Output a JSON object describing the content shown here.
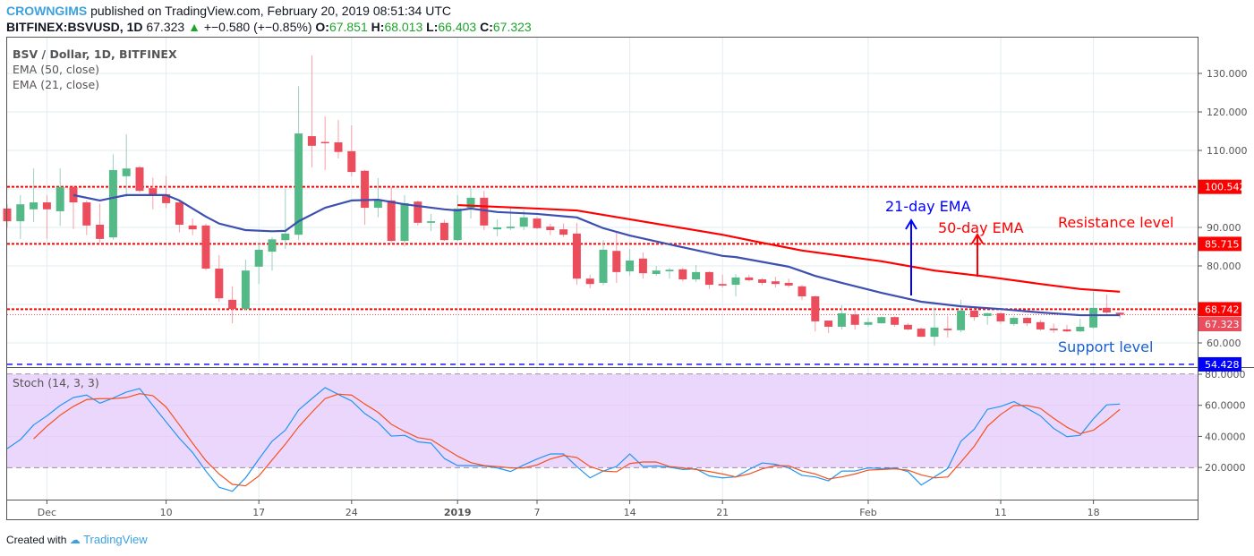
{
  "header": {
    "author": "CROWNGIMS",
    "published": "published on TradingView.com, February 20, 2019 08:51:34 UTC",
    "symbol": "BITFINEX:BSVUSD, 1D",
    "last": "67.323",
    "change": "+−0.580 (+−0.85%)",
    "o_label": "O:",
    "o": "67.851",
    "h_label": "H:",
    "h": "68.013",
    "l_label": "L:",
    "l": "66.403",
    "c_label": "C:",
    "c": "67.323"
  },
  "legend": {
    "title": "BSV / Dollar, 1D, BITFINEX",
    "ema50": "EMA (50, close)",
    "ema21": "EMA (21, close)",
    "stoch": "Stoch (14, 3, 3)"
  },
  "footer": {
    "created": "Created with",
    "brand": "TradingView"
  },
  "colors": {
    "up": "#53b987",
    "down": "#eb4d5c",
    "ema21": "#3d4fb0",
    "ema50": "#ff0000",
    "stoch_k": "#2196f3",
    "stoch_d": "#f4511e",
    "stoch_band": "#e9d0fb",
    "support": "#0000ff",
    "resistance": "#ff0000"
  },
  "chart_data": [
    {
      "type": "candlestick",
      "price_axis": {
        "range": [
          52,
          137
        ],
        "ticks": [
          "130.000",
          "120.000",
          "110.000",
          "90.000",
          "80.000",
          "60.000"
        ],
        "tick_values": [
          130,
          120,
          110,
          90,
          80,
          60
        ]
      },
      "time_axis": {
        "labels": [
          "Dec",
          "10",
          "17",
          "24",
          "2019",
          "7",
          "14",
          "21",
          "Feb",
          "11",
          "18"
        ],
        "label_dates": [
          "Dec 1",
          "Dec 10",
          "Dec 17",
          "Dec 24",
          "Jan 1",
          "Jan 7",
          "Jan 14",
          "Jan 21",
          "Feb 1",
          "Feb 11",
          "Feb 18"
        ]
      },
      "levels": [
        {
          "value": 100.542,
          "label": "100.542",
          "color": "#ff0000",
          "style": "dotted"
        },
        {
          "value": 85.715,
          "label": "85.715",
          "color": "#ff0000",
          "style": "dotted"
        },
        {
          "value": 68.742,
          "label": "68.742",
          "color": "#ff0000",
          "style": "dotted"
        },
        {
          "value": 67.323,
          "label": "67.323",
          "color": "#eb4d5c",
          "style": "price"
        },
        {
          "value": 54.428,
          "label": "54.428",
          "color": "#0000ff",
          "style": "dashed"
        }
      ],
      "annotations": {
        "ema21": "21-day EMA",
        "ema50": "50-day EMA",
        "resistance": "Resistance level",
        "support": "Support level"
      },
      "candles_ohlc_fields": [
        "date",
        "open",
        "high",
        "low",
        "close"
      ],
      "candles": [
        [
          "Nov 28",
          94.9,
          96,
          90,
          91.6
        ],
        [
          "Nov 29",
          91.6,
          98.4,
          87,
          96
        ],
        [
          "Nov 30",
          94.7,
          105.3,
          91.4,
          96.5
        ],
        [
          "Dec 1",
          96.5,
          98.4,
          87,
          94.7
        ],
        [
          "Dec 2",
          94.2,
          105.3,
          90.4,
          100.5
        ],
        [
          "Dec 3",
          100.5,
          101,
          89.6,
          96.5
        ],
        [
          "Dec 4",
          96.5,
          97,
          88,
          90.5
        ],
        [
          "Dec 5",
          90.7,
          96.2,
          86,
          87
        ],
        [
          "Dec 6",
          87.4,
          109,
          86.8,
          104.9
        ],
        [
          "Dec 7",
          103.3,
          114.2,
          97.9,
          105.3
        ],
        [
          "Dec 8",
          105.6,
          106,
          99,
          99.5
        ],
        [
          "Dec 9",
          100.2,
          102.9,
          94.7,
          98.4
        ],
        [
          "Dec 10",
          98.6,
          103.3,
          95,
          96.3
        ],
        [
          "Dec 11",
          96.5,
          97,
          88.7,
          90.7
        ],
        [
          "Dec 12",
          90.5,
          92.3,
          88,
          89.5
        ],
        [
          "Dec 13",
          90.5,
          91,
          78.8,
          79.3
        ],
        [
          "Dec 14",
          79.3,
          82.8,
          70.7,
          71.6
        ],
        [
          "Dec 15",
          71.2,
          74.7,
          65.1,
          68.8
        ],
        [
          "Dec 16",
          68.8,
          81.6,
          68.5,
          78.8
        ],
        [
          "Dec 17",
          79.8,
          86,
          75.3,
          84.2
        ],
        [
          "Dec 18",
          83.7,
          87.5,
          78.8,
          86.9
        ],
        [
          "Dec 19",
          86.7,
          100,
          84.4,
          88.4
        ],
        [
          "Dec 20",
          88.1,
          126.7,
          86.7,
          114.4
        ],
        [
          "Dec 21",
          113.7,
          134.7,
          105.6,
          111.2
        ],
        [
          "Dec 22",
          112.2,
          118.8,
          104.9,
          112
        ],
        [
          "Dec 23",
          112.1,
          117.9,
          107.9,
          109.6
        ],
        [
          "Dec 24",
          109.8,
          116.5,
          103.3,
          104.4
        ],
        [
          "Dec 25",
          104.7,
          105,
          90.7,
          95.1
        ],
        [
          "Dec 26",
          95.1,
          102.8,
          92.6,
          97.2
        ],
        [
          "Dec 27",
          97,
          100.5,
          86,
          86.5
        ],
        [
          "Dec 28",
          86.5,
          98.4,
          85,
          96.3
        ],
        [
          "Dec 29",
          96.7,
          97,
          90.5,
          91.2
        ],
        [
          "Dec 30",
          91.2,
          93.5,
          89,
          91.6
        ],
        [
          "Dec 31",
          91.2,
          92,
          86.5,
          86.7
        ],
        [
          "Jan 1",
          86.7,
          98.4,
          86.5,
          94.9
        ],
        [
          "Jan 2",
          95.1,
          100.2,
          92.3,
          97.7
        ],
        [
          "Jan 3",
          97.7,
          99.5,
          89.3,
          90.5
        ],
        [
          "Jan 4",
          89.5,
          92.1,
          87.7,
          90
        ],
        [
          "Jan 5",
          89.8,
          95,
          89.3,
          90.2
        ],
        [
          "Jan 6",
          90.2,
          94.4,
          89.3,
          92.6
        ],
        [
          "Jan 7",
          92.3,
          92.8,
          89.5,
          89.8
        ],
        [
          "Jan 8",
          90.2,
          91,
          88,
          89.3
        ],
        [
          "Jan 9",
          89.5,
          91,
          87.5,
          88.1
        ],
        [
          "Jan 10",
          88.4,
          91.2,
          75.1,
          76.7
        ],
        [
          "Jan 11",
          76.7,
          77.7,
          74.2,
          75.3
        ],
        [
          "Jan 12",
          75.6,
          86.7,
          75,
          84.2
        ],
        [
          "Jan 13",
          83.9,
          88.8,
          75.6,
          78.4
        ],
        [
          "Jan 14",
          78.6,
          84.4,
          77.4,
          81.4
        ],
        [
          "Jan 15",
          81.9,
          83.5,
          76.7,
          78.1
        ],
        [
          "Jan 16",
          77.9,
          80,
          77.4,
          78.8
        ],
        [
          "Jan 17",
          78.6,
          79.5,
          76.7,
          79
        ],
        [
          "Jan 18",
          79.1,
          79.5,
          76,
          76.5
        ],
        [
          "Jan 19",
          76.5,
          80.2,
          75.8,
          78.4
        ],
        [
          "Jan 20",
          78.4,
          78.6,
          74,
          75.1
        ],
        [
          "Jan 21",
          75.3,
          77.7,
          74.4,
          74.9
        ],
        [
          "Jan 22",
          75.1,
          77.9,
          72.1,
          77
        ],
        [
          "Jan 23",
          77,
          77.7,
          76,
          76.3
        ],
        [
          "Jan 24",
          76.5,
          76.8,
          75,
          75.6
        ],
        [
          "Jan 25",
          76,
          77.2,
          74.4,
          75.3
        ],
        [
          "Jan 26",
          75.6,
          76.7,
          74.4,
          74.9
        ],
        [
          "Jan 27",
          74.7,
          75.1,
          71.2,
          72.1
        ],
        [
          "Jan 28",
          72.1,
          72.3,
          63,
          65.6
        ],
        [
          "Jan 29",
          65.8,
          65.8,
          62.6,
          64.2
        ],
        [
          "Jan 30",
          64.2,
          69.8,
          63.5,
          67.7
        ],
        [
          "Jan 31",
          67.4,
          68.8,
          63.5,
          64.7
        ],
        [
          "Feb 1",
          64.7,
          66.5,
          64.2,
          65.4
        ],
        [
          "Feb 2",
          65.1,
          66.9,
          65,
          66.7
        ],
        [
          "Feb 3",
          66.7,
          66.9,
          64.2,
          64.7
        ],
        [
          "Feb 4",
          64.7,
          65.1,
          63.3,
          63.5
        ],
        [
          "Feb 5",
          63.7,
          64,
          61.5,
          61.6
        ],
        [
          "Feb 6",
          61.6,
          69.3,
          59.3,
          64
        ],
        [
          "Feb 7",
          63.7,
          67,
          61.4,
          63.3
        ],
        [
          "Feb 8",
          63.3,
          71.2,
          62.8,
          68.4
        ],
        [
          "Feb 9",
          68.4,
          68.8,
          65.8,
          66.7
        ],
        [
          "Feb 10",
          67,
          67.9,
          64.7,
          67.7
        ],
        [
          "Feb 11",
          67.7,
          68,
          65,
          65.6
        ],
        [
          "Feb 12",
          64.9,
          67,
          64.4,
          66.5
        ],
        [
          "Feb 13",
          66.5,
          66.8,
          64.4,
          65.1
        ],
        [
          "Feb 14",
          65.4,
          66,
          63.2,
          63.5
        ],
        [
          "Feb 15",
          63.7,
          65,
          62.6,
          63.3
        ],
        [
          "Feb 16",
          63.5,
          64.7,
          62.8,
          63
        ],
        [
          "Feb 17",
          63,
          66.3,
          62.8,
          64.2
        ],
        [
          "Feb 18",
          64,
          73.3,
          63.7,
          69.1
        ],
        [
          "Feb 19",
          69.1,
          72.6,
          67.5,
          67.9
        ],
        [
          "Feb 20",
          67.851,
          68.013,
          66.403,
          67.323
        ]
      ],
      "ema21": [
        [
          "Dec 3",
          98.4
        ],
        [
          "Dec 5",
          97
        ],
        [
          "Dec 7",
          98.4
        ],
        [
          "Dec 10",
          98.4
        ],
        [
          "Dec 11",
          97
        ],
        [
          "Dec 13",
          92.8
        ],
        [
          "Dec 14",
          91
        ],
        [
          "Dec 16",
          89.3
        ],
        [
          "Dec 18",
          89
        ],
        [
          "Dec 19",
          89.1
        ],
        [
          "Dec 20",
          91.6
        ],
        [
          "Dec 22",
          95.1
        ],
        [
          "Dec 24",
          97
        ],
        [
          "Dec 26",
          97.2
        ],
        [
          "Dec 28",
          96
        ],
        [
          "Dec 31",
          94.7
        ],
        [
          "Jan 1",
          94.4
        ],
        [
          "Jan 2",
          94.9
        ],
        [
          "Jan 4",
          94
        ],
        [
          "Jan 7",
          93.5
        ],
        [
          "Jan 10",
          92.6
        ],
        [
          "Jan 12",
          89.8
        ],
        [
          "Jan 14",
          87.9
        ],
        [
          "Jan 17",
          85.6
        ],
        [
          "Jan 21",
          82.6
        ],
        [
          "Jan 22",
          82.3
        ],
        [
          "Jan 26",
          79.8
        ],
        [
          "Jan 28",
          77.4
        ],
        [
          "Jan 30",
          75.6
        ],
        [
          "Feb 2",
          73
        ],
        [
          "Feb 5",
          70.7
        ],
        [
          "Feb 8",
          69.5
        ],
        [
          "Feb 11",
          68.8
        ],
        [
          "Feb 14",
          67.9
        ],
        [
          "Feb 17",
          67.2
        ],
        [
          "Feb 20",
          67.2
        ]
      ],
      "ema50": [
        [
          "Jan 1",
          95.8
        ],
        [
          "Jan 7",
          94.9
        ],
        [
          "Jan 10",
          94.4
        ],
        [
          "Jan 14",
          92.1
        ],
        [
          "Jan 21",
          88.1
        ],
        [
          "Jan 24",
          86
        ],
        [
          "Jan 27",
          84
        ],
        [
          "Feb 2",
          81.2
        ],
        [
          "Feb 6",
          78.8
        ],
        [
          "Feb 10",
          77.2
        ],
        [
          "Feb 14",
          75.3
        ],
        [
          "Feb 17",
          74
        ],
        [
          "Feb 20",
          73.3
        ]
      ]
    },
    {
      "type": "line",
      "title": "Stoch (14, 3, 3)",
      "y_axis": {
        "range": [
          0,
          86
        ],
        "ticks": [
          "80.0000",
          "60.0000",
          "40.0000",
          "20.0000"
        ],
        "tick_values": [
          80,
          60,
          40,
          20
        ]
      },
      "band": [
        20,
        80
      ],
      "series": [
        {
          "key": "k",
          "values": [
            32.1,
            37.9,
            47.4,
            53.2,
            59.9,
            65,
            66.6,
            61.4,
            64.7,
            68.5,
            70.8,
            59.9,
            49.3,
            38.8,
            29.6,
            17.7,
            7.2,
            4.7,
            13.3,
            25.4,
            36.9,
            44,
            57,
            64.3,
            71.4,
            67,
            62.8,
            54.7,
            49,
            40.2,
            40.7,
            36.5,
            35.6,
            25.8,
            21.2,
            21.2,
            21,
            19.7,
            17.4,
            21.6,
            25.4,
            28.7,
            28.7,
            20.6,
            13.3,
            17.7,
            20.6,
            28.7,
            20.6,
            21,
            20.2,
            18.7,
            19.1,
            14.5,
            13.3,
            13.9,
            18.7,
            22.9,
            22,
            19.7,
            14.9,
            13.9,
            11.4,
            17.7,
            17.7,
            19.7,
            19.3,
            19.7,
            17.4,
            8.7,
            13.9,
            19.3,
            36.9,
            44.6,
            57.4,
            59.3,
            62.4,
            58,
            53.2,
            45.1,
            39.8,
            40.7,
            51.3,
            60.3,
            60.8
          ]
        },
        {
          "key": "d",
          "values": [
            null,
            null,
            38.4,
            46.5,
            53.6,
            59.3,
            63.7,
            64.3,
            64.3,
            65,
            67.5,
            66.2,
            58.9,
            47.4,
            35.6,
            24.4,
            15.8,
            9.1,
            8.2,
            14.5,
            24.8,
            35,
            46.1,
            55.5,
            64.3,
            67.2,
            66.6,
            60.8,
            55.5,
            47.8,
            43.2,
            39.2,
            37.9,
            32.5,
            27.3,
            23.1,
            21.2,
            20.6,
            19.7,
            19.7,
            21.6,
            25.4,
            27.7,
            26.4,
            20.6,
            17.7,
            17.2,
            22.5,
            23.5,
            23.5,
            20.6,
            19.7,
            18.7,
            17.4,
            15.8,
            13.9,
            15.8,
            19.1,
            21.2,
            21,
            17.7,
            15.8,
            12.6,
            13.9,
            15.8,
            18.3,
            18.7,
            19.1,
            18.3,
            15.2,
            13.3,
            13.9,
            23.5,
            33.6,
            46.5,
            54.1,
            59.9,
            59.9,
            58,
            51.6,
            45.9,
            41.7,
            44,
            50.3,
            57.4
          ]
        }
      ]
    }
  ]
}
